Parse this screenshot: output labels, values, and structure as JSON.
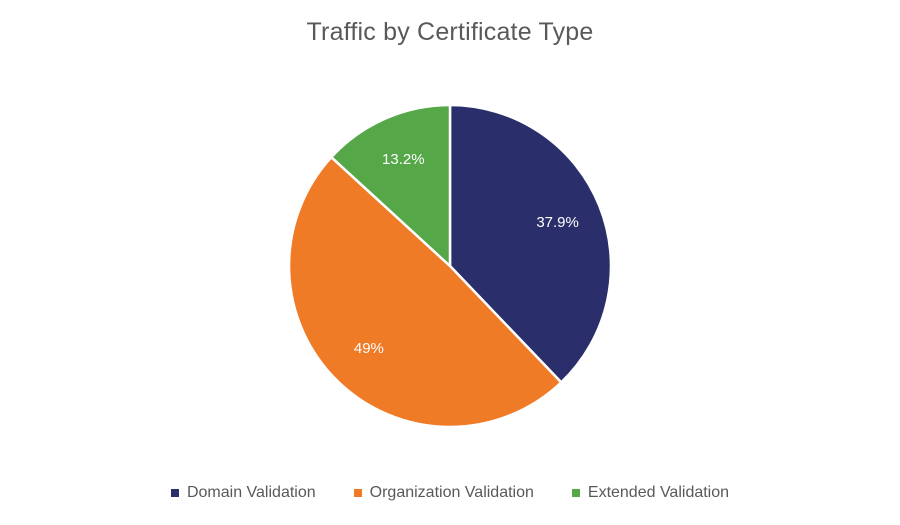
{
  "chart_data": {
    "type": "pie",
    "title": "Traffic by Certificate Type",
    "categories": [
      "Domain Validation",
      "Organization Validation",
      "Extended Validation"
    ],
    "values": [
      37.9,
      49,
      13.2
    ],
    "data_labels": [
      "37.9%",
      "49%",
      "13.2%"
    ],
    "colors": [
      "#2a2e6b",
      "#f07b27",
      "#55a747"
    ],
    "legend_position": "bottom"
  }
}
